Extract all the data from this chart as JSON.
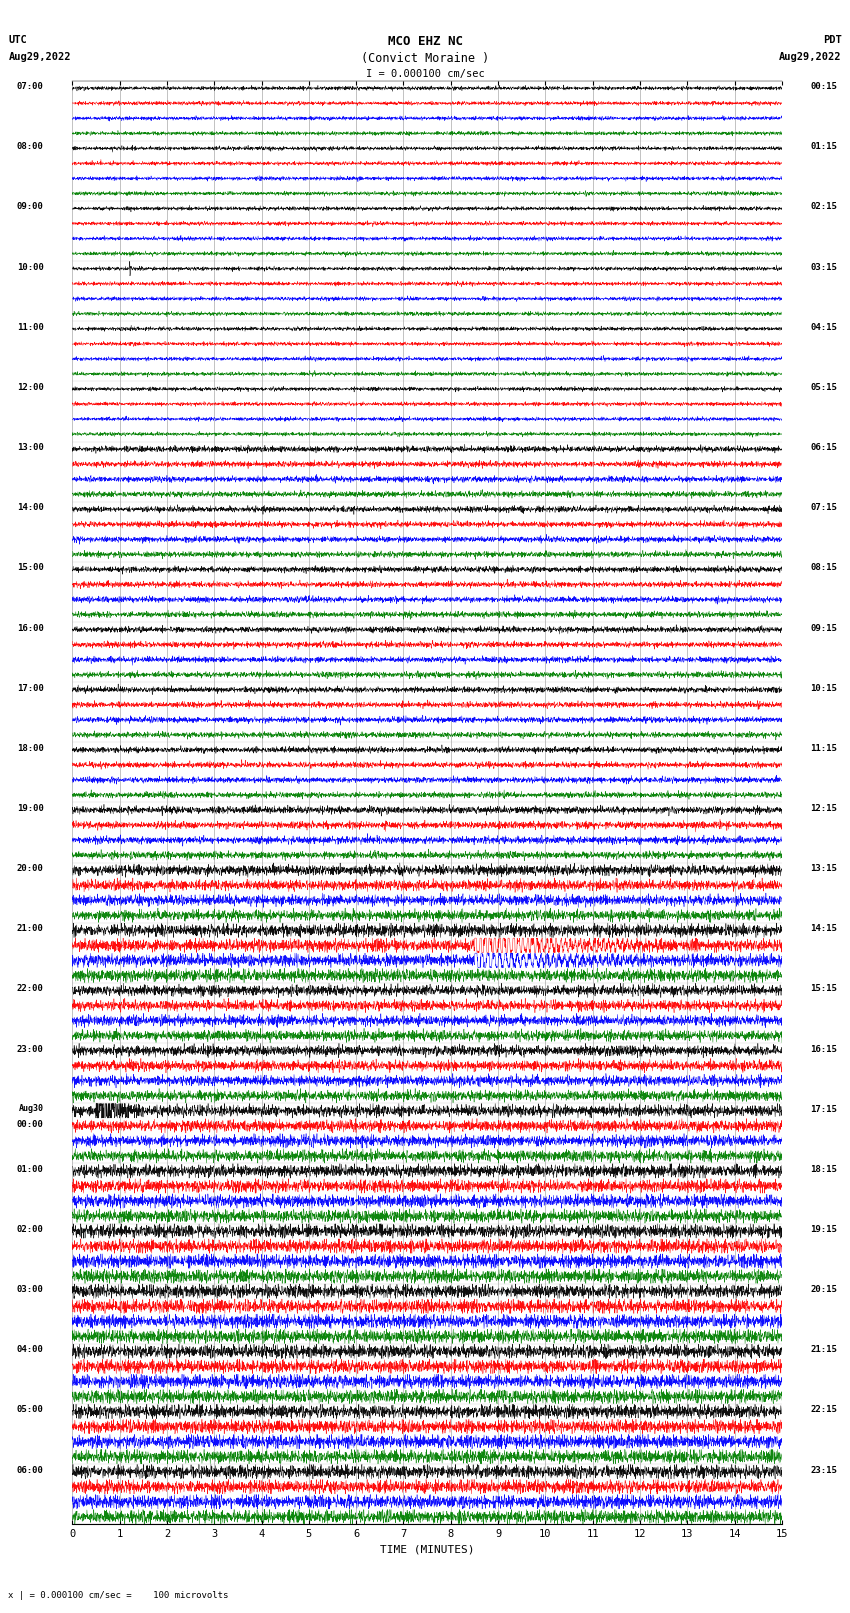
{
  "title_line1": "MCO EHZ NC",
  "title_line2": "(Convict Moraine )",
  "scale_bar": "I = 0.000100 cm/sec",
  "utc_label": "UTC",
  "utc_date": "Aug29,2022",
  "pdt_label": "PDT",
  "pdt_date": "Aug29,2022",
  "xlabel": "TIME (MINUTES)",
  "bottom_note": "x | = 0.000100 cm/sec =    100 microvolts",
  "left_times": [
    "07:00",
    "08:00",
    "09:00",
    "10:00",
    "11:00",
    "12:00",
    "13:00",
    "14:00",
    "15:00",
    "16:00",
    "17:00",
    "18:00",
    "19:00",
    "20:00",
    "21:00",
    "22:00",
    "23:00",
    "Aug30\n00:00",
    "01:00",
    "02:00",
    "03:00",
    "04:00",
    "05:00",
    "06:00"
  ],
  "right_times": [
    "00:15",
    "01:15",
    "02:15",
    "03:15",
    "04:15",
    "05:15",
    "06:15",
    "07:15",
    "08:15",
    "09:15",
    "10:15",
    "11:15",
    "12:15",
    "13:15",
    "14:15",
    "15:15",
    "16:15",
    "17:15",
    "18:15",
    "19:15",
    "20:15",
    "21:15",
    "22:15",
    "23:15"
  ],
  "n_rows": 24,
  "traces_per_row": 4,
  "colors": [
    "black",
    "red",
    "blue",
    "green"
  ],
  "xlim": [
    0,
    15
  ],
  "xticks": [
    0,
    1,
    2,
    3,
    4,
    5,
    6,
    7,
    8,
    9,
    10,
    11,
    12,
    13,
    14,
    15
  ],
  "bg_color": "white",
  "grid_color": "#aaaaaa",
  "seed": 42
}
